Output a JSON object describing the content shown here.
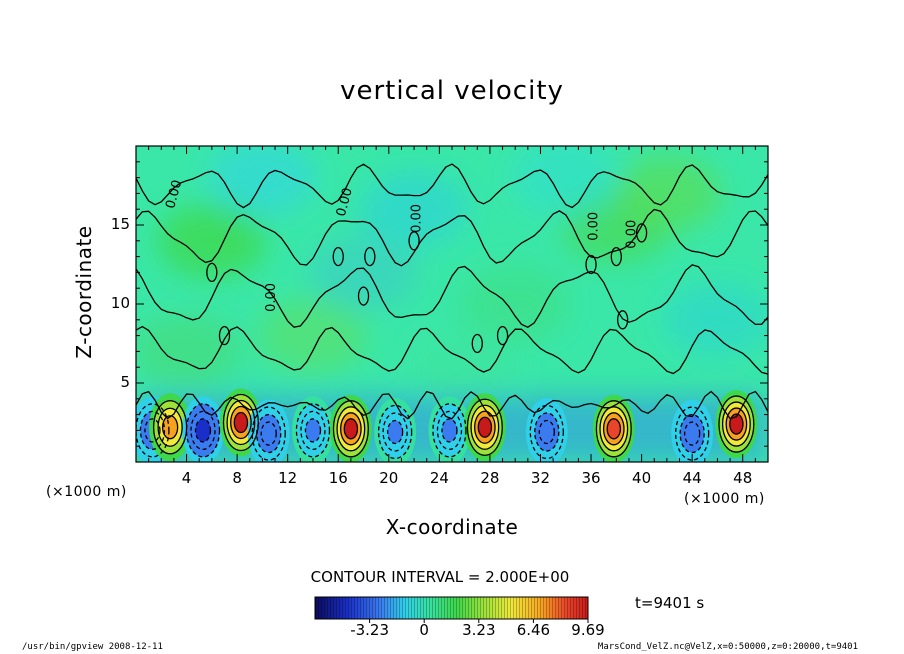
{
  "chart_data": {
    "type": "heatmap",
    "title": "vertical velocity",
    "xlabel": "X-coordinate",
    "ylabel": "Z-coordinate",
    "x_unit_left": "(×1000 m)",
    "x_unit_right": "(×1000 m)",
    "xlim": [
      0,
      50
    ],
    "ylim": [
      0,
      20
    ],
    "x_ticks": [
      4,
      8,
      12,
      16,
      20,
      24,
      28,
      32,
      36,
      40,
      44,
      48
    ],
    "y_ticks": [
      5,
      10,
      15
    ],
    "contour_interval": "CONTOUR INTERVAL = 2.000E+00",
    "contour_label": "0.00",
    "colorbar_ticks": [
      "-3.23",
      "0",
      "3.23",
      "6.46",
      "9.69"
    ],
    "colorbar_range": [
      -6.46,
      9.69
    ],
    "time_label": "t=9401 s",
    "colormap": [
      "#0b0b5c",
      "#1a2fc8",
      "#3a7cf0",
      "#2fd0e8",
      "#36e0a0",
      "#3fd84a",
      "#9ce23a",
      "#f0e83a",
      "#f7a21f",
      "#e8452a",
      "#c81a1a"
    ],
    "background_color": "#3ae7a8",
    "cells": [
      {
        "x": 1.3,
        "z": 2.0,
        "w": -4
      },
      {
        "x": 2.7,
        "z": 2.2,
        "w": 7
      },
      {
        "x": 5.3,
        "z": 2.0,
        "w": -5
      },
      {
        "x": 8.3,
        "z": 2.5,
        "w": 9
      },
      {
        "x": 10.5,
        "z": 1.8,
        "w": -4
      },
      {
        "x": 14.0,
        "z": 2.0,
        "w": -3
      },
      {
        "x": 17.0,
        "z": 2.1,
        "w": 9
      },
      {
        "x": 20.5,
        "z": 1.9,
        "w": -3
      },
      {
        "x": 24.8,
        "z": 2.0,
        "w": -3
      },
      {
        "x": 27.6,
        "z": 2.2,
        "w": 9
      },
      {
        "x": 32.5,
        "z": 1.9,
        "w": -4
      },
      {
        "x": 37.8,
        "z": 2.1,
        "w": 8
      },
      {
        "x": 44.0,
        "z": 1.8,
        "w": -4
      },
      {
        "x": 47.5,
        "z": 2.4,
        "w": 9
      }
    ]
  },
  "footer": {
    "left": "/usr/bin/gpview   2008-12-11",
    "right": "MarsCond_VelZ.nc@VelZ,x=0:50000,z=0:20000,t=9401"
  }
}
